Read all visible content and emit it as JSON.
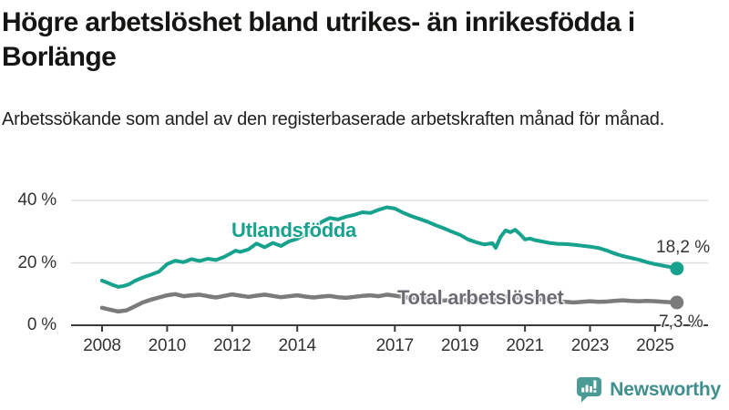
{
  "header": {
    "title": "Högre arbetslöshet bland utrikes- än inrikesfödda i Borlänge",
    "subtitle": "Arbetssökande som andel av den registerbaserade arbetskraften månad för månad."
  },
  "colors": {
    "accent_teal": "#17a28e",
    "line_gray": "#7b7b7b",
    "series_label_gray": "#6c6c75",
    "axis_text": "#333333",
    "grid_line": "#dcdcdc",
    "axis_line": "#3a3a3a",
    "brand_teal": "#3f8f8c"
  },
  "chart_data": {
    "type": "line",
    "unit": "%",
    "x_range": [
      2008,
      2025.67
    ],
    "ylim": [
      0,
      44
    ],
    "grid": "horizontal",
    "y_ticks": [
      {
        "value": 0,
        "label": "0 %"
      },
      {
        "value": 20,
        "label": "20 %"
      },
      {
        "value": 40,
        "label": "40 %"
      }
    ],
    "x_ticks": [
      {
        "value": 2008,
        "label": "2008"
      },
      {
        "value": 2010,
        "label": "2010"
      },
      {
        "value": 2012,
        "label": "2012"
      },
      {
        "value": 2014,
        "label": "2014"
      },
      {
        "value": 2017,
        "label": "2017"
      },
      {
        "value": 2019,
        "label": "2019"
      },
      {
        "value": 2021,
        "label": "2021"
      },
      {
        "value": 2023,
        "label": "2023"
      },
      {
        "value": 2025,
        "label": "2025"
      }
    ],
    "series": [
      {
        "name": "Utlandsfödda",
        "color": "#17a28e",
        "width": 4,
        "end_value": 18.2,
        "end_label": "18,2 %",
        "points": [
          [
            2008.0,
            14.3
          ],
          [
            2008.17,
            13.6
          ],
          [
            2008.33,
            12.9
          ],
          [
            2008.5,
            12.3
          ],
          [
            2008.67,
            12.6
          ],
          [
            2008.83,
            13.1
          ],
          [
            2009.0,
            14.2
          ],
          [
            2009.25,
            15.3
          ],
          [
            2009.5,
            16.2
          ],
          [
            2009.75,
            17.2
          ],
          [
            2010.0,
            19.6
          ],
          [
            2010.25,
            20.7
          ],
          [
            2010.5,
            20.2
          ],
          [
            2010.75,
            21.2
          ],
          [
            2011.0,
            20.6
          ],
          [
            2011.25,
            21.3
          ],
          [
            2011.5,
            20.9
          ],
          [
            2011.75,
            21.9
          ],
          [
            2012.0,
            23.3
          ],
          [
            2012.1,
            23.9
          ],
          [
            2012.25,
            23.5
          ],
          [
            2012.5,
            24.3
          ],
          [
            2012.75,
            26.2
          ],
          [
            2013.0,
            25.0
          ],
          [
            2013.25,
            26.4
          ],
          [
            2013.5,
            25.4
          ],
          [
            2013.75,
            26.9
          ],
          [
            2014.0,
            27.7
          ],
          [
            2014.25,
            29.1
          ],
          [
            2014.5,
            31.1
          ],
          [
            2014.75,
            33.1
          ],
          [
            2015.0,
            34.4
          ],
          [
            2015.25,
            33.9
          ],
          [
            2015.5,
            34.8
          ],
          [
            2015.75,
            35.4
          ],
          [
            2016.0,
            36.2
          ],
          [
            2016.25,
            36.0
          ],
          [
            2016.5,
            37.0
          ],
          [
            2016.75,
            37.8
          ],
          [
            2017.0,
            37.4
          ],
          [
            2017.25,
            36.1
          ],
          [
            2017.5,
            35.0
          ],
          [
            2017.75,
            34.1
          ],
          [
            2018.0,
            33.2
          ],
          [
            2018.25,
            32.1
          ],
          [
            2018.5,
            31.1
          ],
          [
            2018.75,
            30.0
          ],
          [
            2019.0,
            29.0
          ],
          [
            2019.25,
            27.5
          ],
          [
            2019.5,
            26.6
          ],
          [
            2019.75,
            25.9
          ],
          [
            2020.0,
            26.3
          ],
          [
            2020.1,
            24.8
          ],
          [
            2020.25,
            28.3
          ],
          [
            2020.4,
            30.4
          ],
          [
            2020.55,
            29.8
          ],
          [
            2020.7,
            30.6
          ],
          [
            2020.85,
            29.2
          ],
          [
            2021.0,
            27.5
          ],
          [
            2021.15,
            27.8
          ],
          [
            2021.3,
            27.3
          ],
          [
            2021.5,
            26.9
          ],
          [
            2021.75,
            26.4
          ],
          [
            2022.0,
            26.1
          ],
          [
            2022.25,
            26.0
          ],
          [
            2022.5,
            25.8
          ],
          [
            2022.75,
            25.5
          ],
          [
            2023.0,
            25.2
          ],
          [
            2023.25,
            24.8
          ],
          [
            2023.5,
            24.0
          ],
          [
            2023.75,
            23.0
          ],
          [
            2024.0,
            22.2
          ],
          [
            2024.25,
            21.6
          ],
          [
            2024.5,
            21.0
          ],
          [
            2024.75,
            20.2
          ],
          [
            2025.0,
            19.6
          ],
          [
            2025.25,
            19.1
          ],
          [
            2025.5,
            18.6
          ],
          [
            2025.67,
            18.2
          ]
        ]
      },
      {
        "name": "Total arbetslöshet",
        "color": "#7b7b7b",
        "width": 4.5,
        "end_value": 7.3,
        "end_label": "7,3 %",
        "points": [
          [
            2008.0,
            5.6
          ],
          [
            2008.25,
            5.0
          ],
          [
            2008.5,
            4.4
          ],
          [
            2008.75,
            4.8
          ],
          [
            2009.0,
            6.0
          ],
          [
            2009.25,
            7.3
          ],
          [
            2009.5,
            8.2
          ],
          [
            2009.75,
            8.9
          ],
          [
            2010.0,
            9.6
          ],
          [
            2010.25,
            10.0
          ],
          [
            2010.5,
            9.3
          ],
          [
            2010.75,
            9.6
          ],
          [
            2011.0,
            9.8
          ],
          [
            2011.25,
            9.3
          ],
          [
            2011.5,
            8.9
          ],
          [
            2011.75,
            9.4
          ],
          [
            2012.0,
            9.9
          ],
          [
            2012.25,
            9.5
          ],
          [
            2012.5,
            9.1
          ],
          [
            2012.75,
            9.5
          ],
          [
            2013.0,
            9.8
          ],
          [
            2013.25,
            9.4
          ],
          [
            2013.5,
            9.0
          ],
          [
            2013.75,
            9.3
          ],
          [
            2014.0,
            9.6
          ],
          [
            2014.25,
            9.2
          ],
          [
            2014.5,
            8.9
          ],
          [
            2014.75,
            9.2
          ],
          [
            2015.0,
            9.4
          ],
          [
            2015.25,
            9.0
          ],
          [
            2015.5,
            8.8
          ],
          [
            2015.75,
            9.1
          ],
          [
            2016.0,
            9.4
          ],
          [
            2016.25,
            9.6
          ],
          [
            2016.5,
            9.3
          ],
          [
            2016.75,
            9.8
          ],
          [
            2017.0,
            9.5
          ],
          [
            2017.25,
            9.1
          ],
          [
            2017.5,
            8.7
          ],
          [
            2017.75,
            8.9
          ],
          [
            2018.0,
            8.5
          ],
          [
            2018.25,
            8.1
          ],
          [
            2018.5,
            7.9
          ],
          [
            2018.75,
            8.1
          ],
          [
            2019.0,
            8.3
          ],
          [
            2019.25,
            7.9
          ],
          [
            2019.5,
            7.7
          ],
          [
            2019.75,
            7.9
          ],
          [
            2020.0,
            7.8
          ],
          [
            2020.25,
            8.7
          ],
          [
            2020.42,
            9.3
          ],
          [
            2020.58,
            9.1
          ],
          [
            2020.75,
            8.9
          ],
          [
            2021.0,
            9.0
          ],
          [
            2021.25,
            8.6
          ],
          [
            2021.5,
            8.2
          ],
          [
            2021.75,
            7.9
          ],
          [
            2022.0,
            7.7
          ],
          [
            2022.25,
            7.5
          ],
          [
            2022.5,
            7.3
          ],
          [
            2022.75,
            7.5
          ],
          [
            2023.0,
            7.7
          ],
          [
            2023.25,
            7.5
          ],
          [
            2023.5,
            7.6
          ],
          [
            2023.75,
            7.8
          ],
          [
            2024.0,
            8.0
          ],
          [
            2024.25,
            7.8
          ],
          [
            2024.5,
            7.7
          ],
          [
            2024.75,
            7.8
          ],
          [
            2025.0,
            7.7
          ],
          [
            2025.25,
            7.5
          ],
          [
            2025.5,
            7.4
          ],
          [
            2025.67,
            7.3
          ]
        ]
      }
    ]
  },
  "footer": {
    "brand": "Newsworthy",
    "logo_icon": "bar-chart-speech-bubble-icon"
  }
}
